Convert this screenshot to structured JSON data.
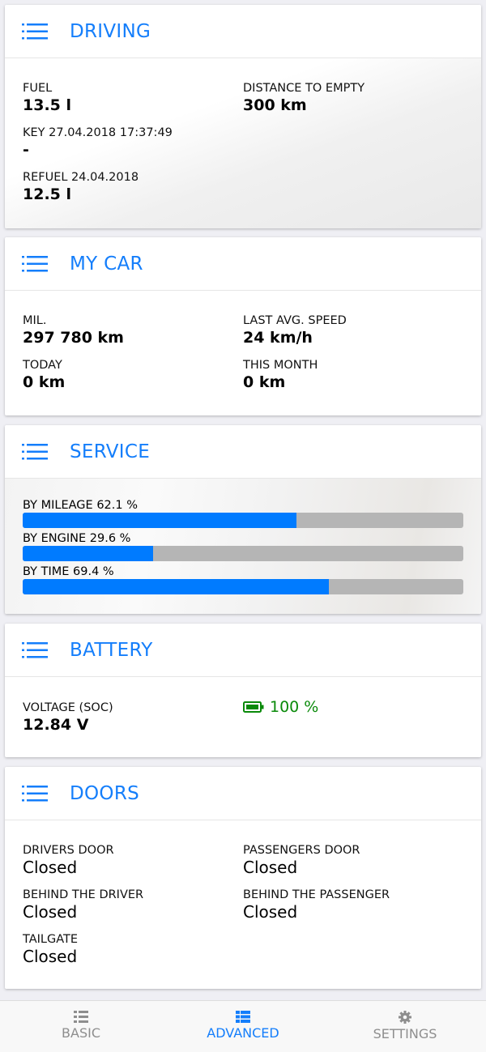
{
  "driving": {
    "title": "DRIVING",
    "fuel_label": "FUEL",
    "fuel_value": "13.5 l",
    "dte_label": "DISTANCE TO EMPTY",
    "dte_value": "300 km",
    "key_label": "KEY 27.04.2018 17:37:49",
    "key_value": "-",
    "refuel_label": "REFUEL 24.04.2018",
    "refuel_value": "12.5 l"
  },
  "mycar": {
    "title": "MY CAR",
    "mil_label": "MIL.",
    "mil_value": "297 780 km",
    "speed_label": "LAST AVG. SPEED",
    "speed_value": "24 km/h",
    "today_label": "TODAY",
    "today_value": "0 km",
    "month_label": "THIS MONTH",
    "month_value": "0 km"
  },
  "service": {
    "title": "SERVICE",
    "bars": [
      {
        "label": "BY MILEAGE 62.1 %",
        "percent": 62.1
      },
      {
        "label": "BY ENGINE 29.6 %",
        "percent": 29.6
      },
      {
        "label": "BY TIME 69.4 %",
        "percent": 69.4
      }
    ]
  },
  "battery": {
    "title": "BATTERY",
    "voltage_label": "VOLTAGE (SOC)",
    "voltage_value": "12.84 V",
    "soc": "100 %",
    "icon": "battery-full-icon",
    "color": "#0a8a0a"
  },
  "doors": {
    "title": "DOORS",
    "items": [
      {
        "label": "DRIVERS DOOR",
        "value": "Closed"
      },
      {
        "label": "PASSENGERS DOOR",
        "value": "Closed"
      },
      {
        "label": "BEHIND THE DRIVER",
        "value": "Closed"
      },
      {
        "label": "BEHIND THE PASSENGER",
        "value": "Closed"
      },
      {
        "label": "TAILGATE",
        "value": "Closed"
      }
    ]
  },
  "tabs": [
    {
      "label": "BASIC",
      "icon": "list-icon"
    },
    {
      "label": "ADVANCED",
      "icon": "grid-list-icon",
      "active": true
    },
    {
      "label": "SETTINGS",
      "icon": "gear-icon"
    }
  ],
  "colors": {
    "accent": "#147efb",
    "bar_fill": "#007bff",
    "bar_track": "#b5b5b5"
  }
}
